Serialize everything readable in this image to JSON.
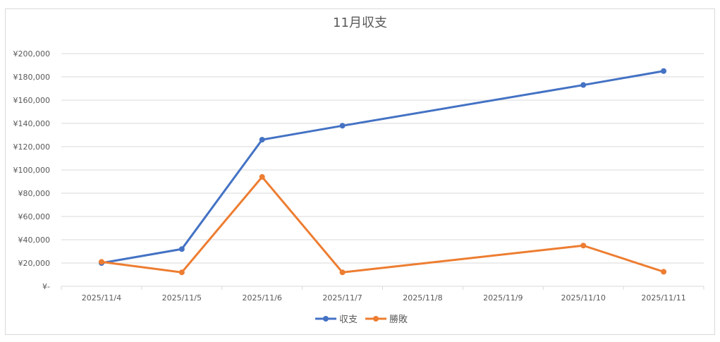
{
  "chart_data": {
    "type": "line",
    "title": "11月収支",
    "categories": [
      "2025/11/4",
      "2025/11/5",
      "2025/11/6",
      "2025/11/7",
      "2025/11/8",
      "2025/11/9",
      "2025/11/10",
      "2025/11/11"
    ],
    "series": [
      {
        "name": "収支",
        "color": "#4472c4",
        "values": [
          20000,
          32000,
          126000,
          138000,
          null,
          null,
          173000,
          185000
        ]
      },
      {
        "name": "勝敗",
        "color": "#ed7d31",
        "values": [
          21000,
          12000,
          94000,
          12000,
          null,
          null,
          35000,
          12500
        ]
      }
    ],
    "ylim": [
      0,
      200000
    ],
    "yticks": [
      0,
      20000,
      40000,
      60000,
      80000,
      100000,
      120000,
      140000,
      160000,
      180000,
      200000
    ],
    "ytick_labels": [
      "¥-",
      "¥20,000",
      "¥40,000",
      "¥60,000",
      "¥80,000",
      "¥100,000",
      "¥120,000",
      "¥140,000",
      "¥160,000",
      "¥180,000",
      "¥200,000"
    ],
    "grid": true,
    "legend_position": "bottom",
    "gridline_color": "#d9d9d9"
  }
}
